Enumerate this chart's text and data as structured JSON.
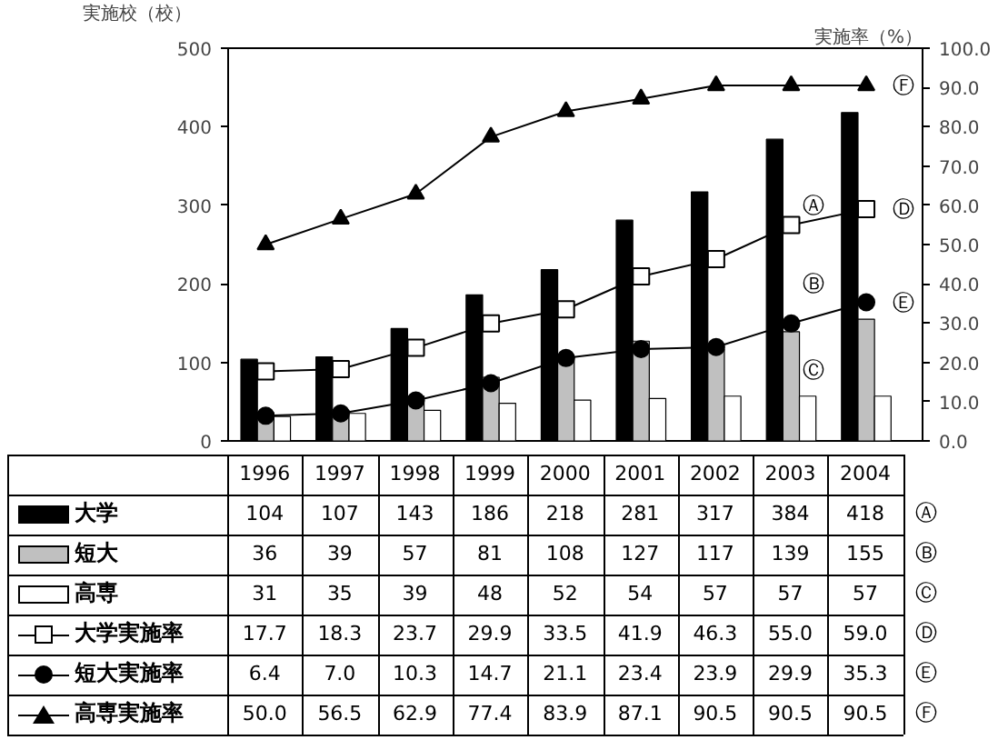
{
  "chart_data": {
    "type": "bar",
    "ylabel": "実施校（校）",
    "y2label": "実施率（%）",
    "categories": [
      "1996",
      "1997",
      "1998",
      "1999",
      "2000",
      "2001",
      "2002",
      "2003",
      "2004"
    ],
    "series": [
      {
        "name": "大学",
        "color": "#000000",
        "values": [
          104,
          107,
          143,
          186,
          218,
          281,
          317,
          384,
          418
        ],
        "value_labels": [
          "104",
          "107",
          "143",
          "186",
          "218",
          "281",
          "317",
          "384",
          "418"
        ]
      },
      {
        "name": "短大",
        "color": "#c0c0c0",
        "values": [
          36,
          39,
          57,
          81,
          108,
          127,
          117,
          139,
          155
        ],
        "value_labels": [
          "36",
          "39",
          "57",
          "81",
          "108",
          "127",
          "117",
          "139",
          "155"
        ]
      },
      {
        "name": "高専",
        "color": "#ffffff",
        "values": [
          31,
          35,
          39,
          48,
          52,
          54,
          57,
          57,
          57
        ],
        "value_labels": [
          "31",
          "35",
          "39",
          "48",
          "52",
          "54",
          "57",
          "57",
          "57"
        ]
      },
      {
        "name": "大学実施率",
        "type": "line",
        "axis": "y2",
        "marker": "square",
        "color": "#000000",
        "values": [
          17.7,
          18.3,
          23.7,
          29.9,
          33.5,
          41.9,
          46.3,
          55.0,
          59.0
        ],
        "value_labels": [
          "17.7",
          "18.3",
          "23.7",
          "29.9",
          "33.5",
          "41.9",
          "46.3",
          "55.0",
          "59.0"
        ]
      },
      {
        "name": "短大実施率",
        "type": "line",
        "axis": "y2",
        "marker": "circle",
        "color": "#000000",
        "values": [
          6.4,
          7.0,
          10.3,
          14.7,
          21.1,
          23.4,
          23.9,
          29.9,
          35.3
        ],
        "value_labels": [
          "6.4",
          "7.0",
          "10.3",
          "14.7",
          "21.1",
          "23.4",
          "23.9",
          "29.9",
          "35.3"
        ]
      },
      {
        "name": "高専実施率",
        "type": "line",
        "axis": "y2",
        "marker": "triangle",
        "color": "#000000",
        "values": [
          50.0,
          56.5,
          62.9,
          77.4,
          83.9,
          87.1,
          90.5,
          90.5,
          90.5
        ],
        "value_labels": [
          "50.0",
          "56.5",
          "62.9",
          "77.4",
          "83.9",
          "87.1",
          "90.5",
          "90.5",
          "90.5"
        ]
      }
    ],
    "ylim": [
      0,
      500
    ],
    "yticks": [
      0,
      100,
      200,
      300,
      400,
      500
    ],
    "y2lim": [
      0,
      100
    ],
    "y2ticks": [
      {
        "value": 0,
        "label": "0.0"
      },
      {
        "value": 10,
        "label": "10.0"
      },
      {
        "value": 20,
        "label": "20.0"
      },
      {
        "value": 30,
        "label": "30.0"
      },
      {
        "value": 40,
        "label": "40.0"
      },
      {
        "value": 50,
        "label": "50.0"
      },
      {
        "value": 60,
        "label": "60.0"
      },
      {
        "value": 70,
        "label": "70.0"
      },
      {
        "value": 80,
        "label": "80.0"
      },
      {
        "value": 90,
        "label": "90.0"
      },
      {
        "value": 100,
        "label": "100.0"
      }
    ],
    "annotations": [
      {
        "text": "Ⓐ",
        "x": "2003",
        "y": 300
      },
      {
        "text": "Ⓑ",
        "x": "2003",
        "y": 200
      },
      {
        "text": "Ⓒ",
        "x": "2003",
        "y": 90
      },
      "Ⓓ",
      "Ⓔ",
      "Ⓕ"
    ],
    "legend": "bottom",
    "grid": false
  }
}
